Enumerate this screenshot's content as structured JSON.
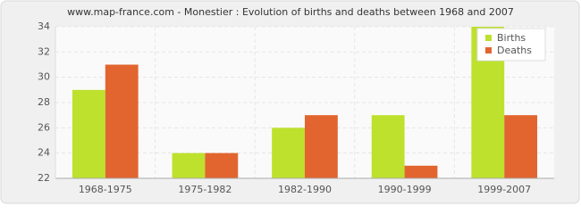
{
  "chart_data": {
    "type": "bar",
    "title": "www.map-france.com - Monestier : Evolution of births and deaths between 1968 and 2007",
    "categories": [
      "1968-1975",
      "1975-1982",
      "1982-1990",
      "1990-1999",
      "1999-2007"
    ],
    "series": [
      {
        "name": "Births",
        "color": "#bde12d",
        "values": [
          29,
          24,
          26,
          27,
          34
        ]
      },
      {
        "name": "Deaths",
        "color": "#e2652f",
        "values": [
          31,
          24,
          27,
          23,
          27
        ]
      }
    ],
    "ylim": [
      22,
      34
    ],
    "yticks": [
      22,
      24,
      26,
      28,
      30,
      32,
      34
    ],
    "grid": true,
    "legend": "top-right"
  }
}
